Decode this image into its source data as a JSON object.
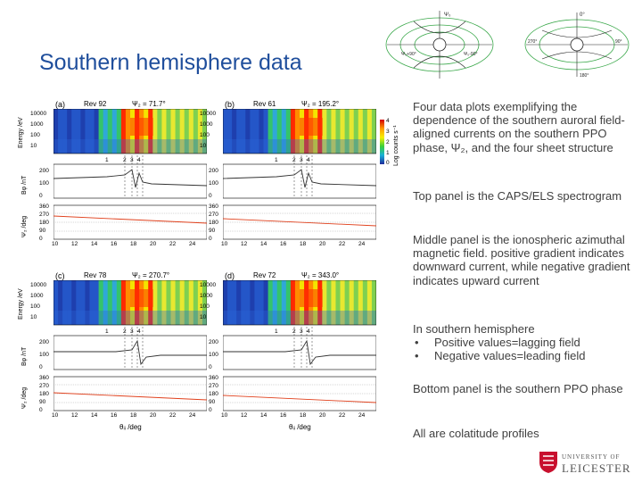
{
  "title": "Southern hemisphere data",
  "diagrams": [
    {
      "labels": [
        "Ψ₀",
        "Ψ₀+90°",
        "Ψ₀-90°"
      ]
    },
    {
      "labels": [
        "0°",
        "90°",
        "180°",
        "270°"
      ]
    }
  ],
  "panels": [
    {
      "letter": "(a)",
      "rev": "Rev 92",
      "psi": "Ψ₂ = 71.7°"
    },
    {
      "letter": "(b)",
      "rev": "Rev 61",
      "psi": "Ψ₂ = 195.2°"
    },
    {
      "letter": "(c)",
      "rev": "Rev 78",
      "psi": "Ψ₂ = 270.7°"
    },
    {
      "letter": "(d)",
      "rev": "Rev 72",
      "psi": "Ψ₂ = 343.0°"
    }
  ],
  "axis": {
    "energy_label": "Energy /eV",
    "b_label": "Bφ /nT",
    "psi_label": "Ψ₂ /deg",
    "x_label": "θᵢᵢ /deg",
    "colorbar_label": "Log counts s⁻¹",
    "energy_ticks": [
      "10000",
      "1000",
      "100",
      "10"
    ],
    "b_ticks": [
      "200",
      "100",
      "0"
    ],
    "psi_ticks": [
      "360",
      "270",
      "180",
      "90",
      "0"
    ],
    "x_ticks": [
      "10",
      "12",
      "14",
      "16",
      "18",
      "20",
      "22",
      "24"
    ],
    "sheet_ticks": [
      "1",
      "2",
      "3",
      "4"
    ],
    "colorbar_ticks": [
      "4",
      "3",
      "2",
      "1",
      "0"
    ]
  },
  "text_blocks": {
    "p1": "Four data plots exemplifying the dependence of the southern auroral field-aligned currents on the southern PPO phase, Ψ₂, and the four sheet structure",
    "p2": "Top panel is the CAPS/ELS spectrogram",
    "p3": "Middle panel is the ionospheric azimuthal magnetic field. positive gradient indicates downward current, while negative gradient indicates upward current",
    "p4": "In southern hemisphere",
    "b1": "Positive values=lagging field",
    "b2": "Negative values=leading field",
    "p5": "Bottom panel is the southern PPO phase",
    "p6": "All are colatitude profiles"
  },
  "logo": {
    "small": "UNIVERSITY OF",
    "big": "LEICESTER"
  },
  "colors": {
    "title": "#1f4e9c",
    "text": "#404040",
    "phase_line": "#e0401c"
  }
}
